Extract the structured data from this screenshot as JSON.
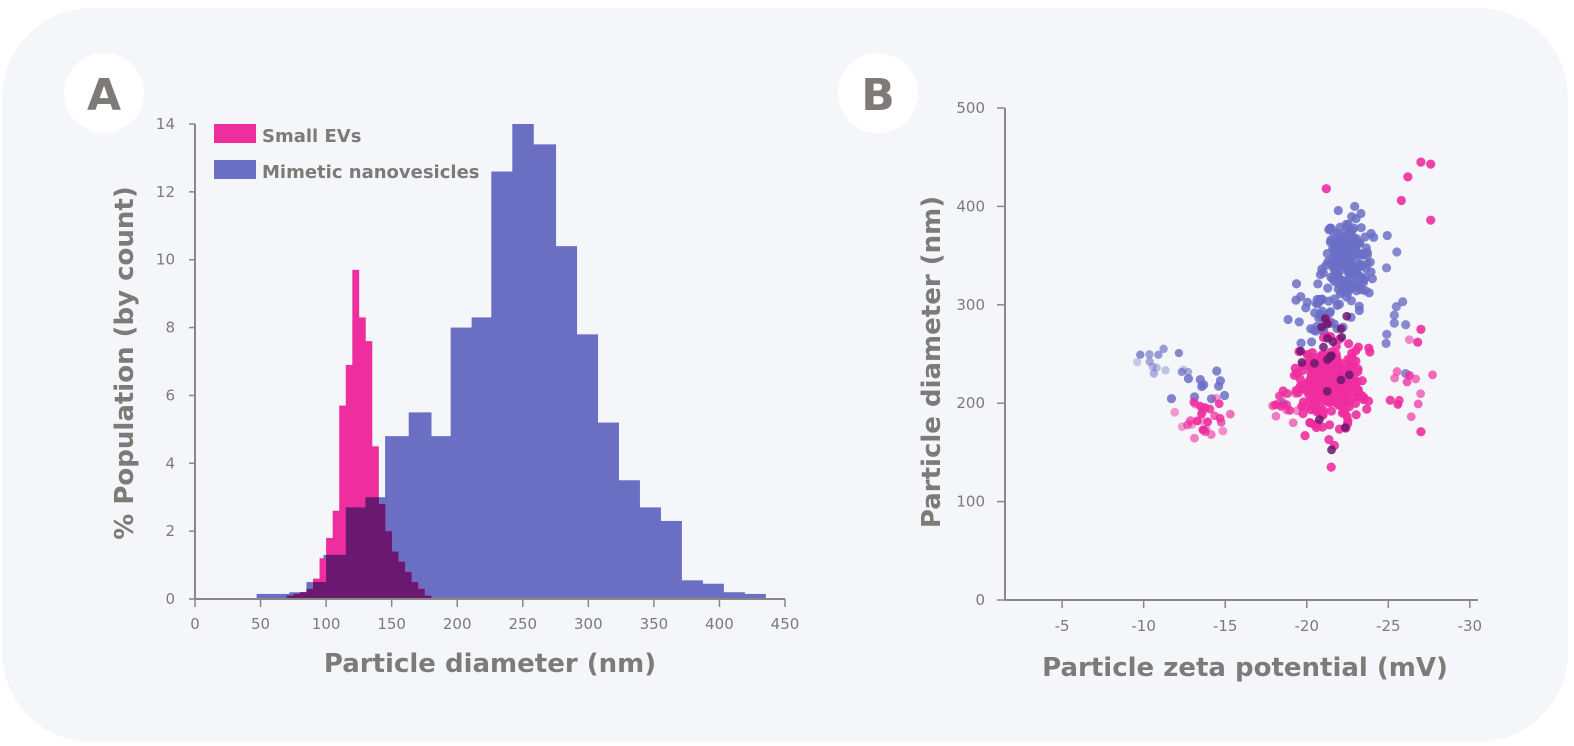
{
  "colors": {
    "pink": "#ee2d9e",
    "blue": "#6b6fc4",
    "overlap": "#6b1870",
    "text": "#7d7a78",
    "card": "#f5f6fa"
  },
  "chart_data": [
    {
      "panel": "A",
      "type": "bar",
      "xlabel": "Particle diameter (nm)",
      "ylabel": "% Population (by count)",
      "xlim": [
        0,
        450
      ],
      "ylim": [
        0,
        14
      ],
      "xticks": [
        0,
        50,
        100,
        150,
        200,
        250,
        300,
        350,
        400,
        450
      ],
      "yticks": [
        0,
        2,
        4,
        6,
        8,
        10,
        12,
        14
      ],
      "legend": "top-left",
      "series": [
        {
          "name": "Small EVs",
          "color": "#ee2d9e",
          "bin_edges": [
            70,
            75,
            80,
            85,
            90,
            95,
            100,
            105,
            110,
            115,
            120,
            125,
            130,
            135,
            140,
            145,
            150,
            155,
            160,
            165,
            170,
            175,
            180
          ],
          "values": [
            0.1,
            0.15,
            0.2,
            0.3,
            0.6,
            1.2,
            1.8,
            2.6,
            5.7,
            6.9,
            9.7,
            8.3,
            7.6,
            4.5,
            2.8,
            2.0,
            1.4,
            1.1,
            0.8,
            0.5,
            0.3,
            0.1
          ]
        },
        {
          "name": "Mimetic nanovesicles",
          "color": "#6b6fc4",
          "bin_edges": [
            47,
            72,
            85,
            98,
            115,
            130,
            145,
            163,
            180,
            195,
            211,
            226,
            242,
            258,
            275,
            291,
            307,
            323,
            339,
            355,
            371,
            387,
            403,
            419,
            435
          ],
          "values": [
            0.15,
            0.2,
            0.5,
            1.3,
            2.7,
            3.0,
            4.8,
            5.5,
            4.8,
            8.0,
            8.3,
            12.6,
            14.0,
            13.4,
            10.4,
            7.8,
            5.2,
            3.5,
            2.7,
            2.3,
            0.55,
            0.45,
            0.2,
            0.15
          ]
        }
      ]
    },
    {
      "panel": "B",
      "type": "scatter",
      "xlabel": "Particle zeta potential (mV)",
      "ylabel": "Particle diameter (nm)",
      "xlim": [
        -1.5,
        -30.5
      ],
      "ylim": [
        0,
        500
      ],
      "xticks": [
        -5,
        -10,
        -15,
        -20,
        -25,
        -30
      ],
      "yticks": [
        0,
        100,
        200,
        300,
        400,
        500
      ]
    }
  ]
}
